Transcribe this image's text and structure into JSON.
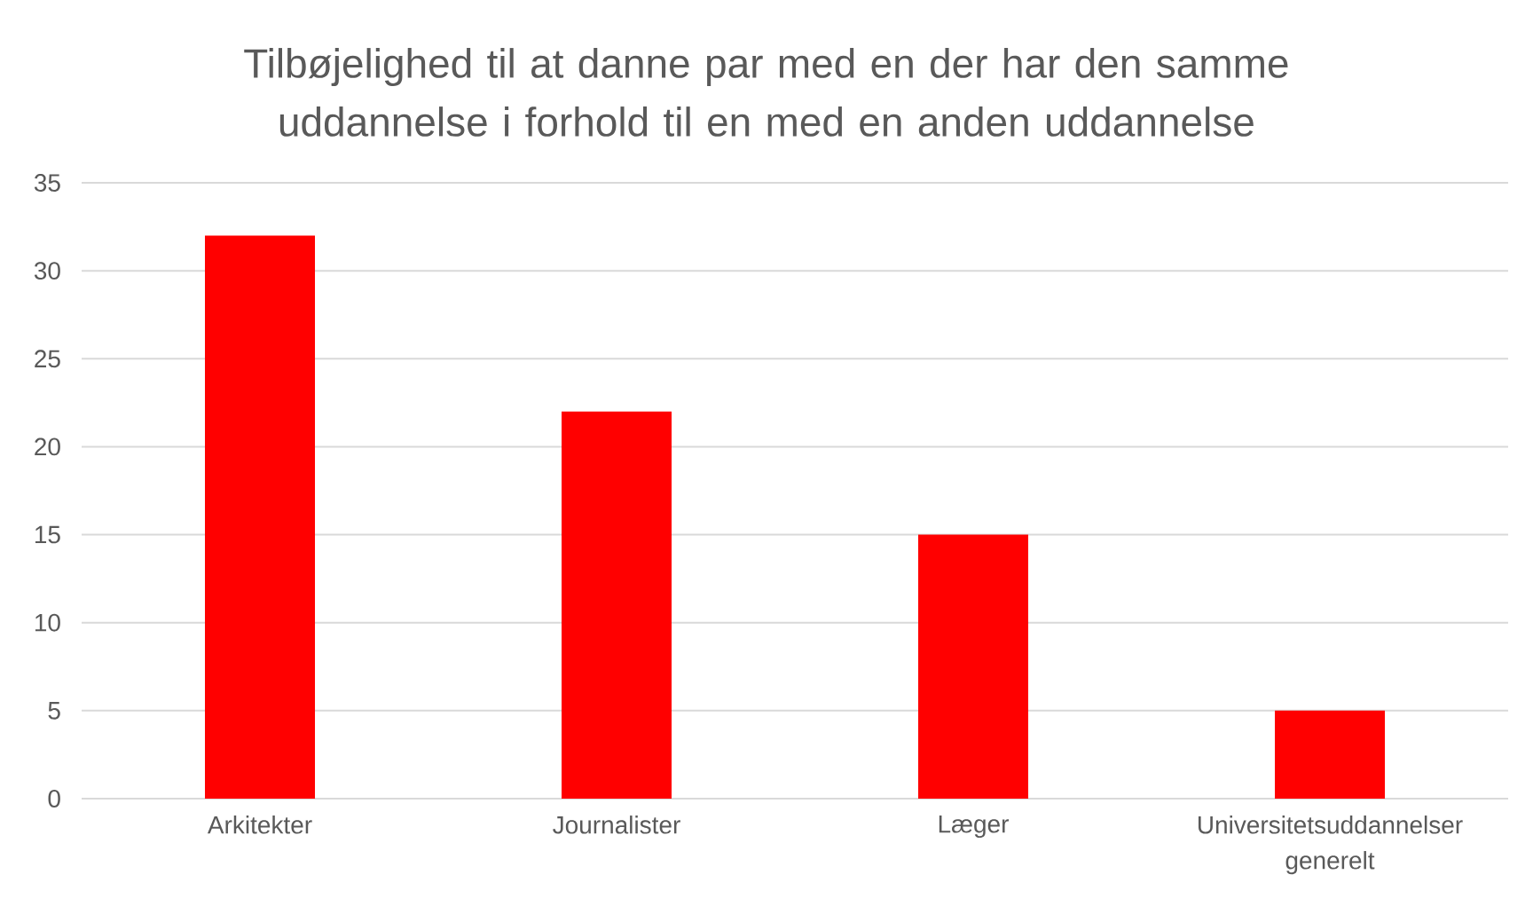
{
  "chart_data": {
    "type": "bar",
    "title": "Tilbøjelighed til at danne par med en der har den samme uddannelse i forhold til en med en anden uddannelse",
    "categories": [
      "Arkitekter",
      "Journalister",
      "Læger",
      "Universitetsuddannelser generelt"
    ],
    "values": [
      32,
      22,
      15,
      5
    ],
    "color": "#ff0000",
    "ylim": [
      0,
      35
    ],
    "yticks": [
      0,
      5,
      10,
      15,
      20,
      25,
      30,
      35
    ],
    "grid": "y"
  }
}
